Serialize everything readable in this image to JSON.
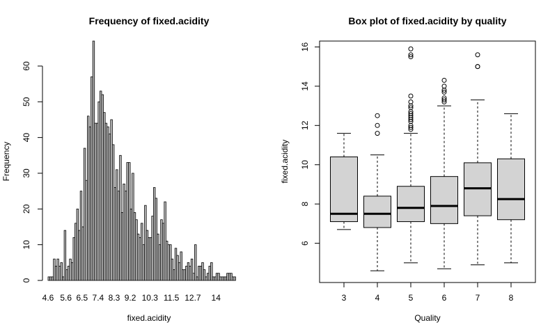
{
  "chart_data": [
    {
      "type": "bar",
      "title": "Frequency of fixed.acidity",
      "xlabel": "fixed.acidity",
      "ylabel": "Frequency",
      "xlim": [
        4.6,
        15.9
      ],
      "ylim": [
        0,
        67
      ],
      "x_tick_labels": [
        "4.6",
        "5.6",
        "6.5",
        "7.4",
        "8.3",
        "9.2",
        "10.3",
        "11.5",
        "12.7",
        "14"
      ],
      "x_tick_values": [
        4.6,
        5.6,
        6.5,
        7.4,
        8.3,
        9.2,
        10.3,
        11.5,
        12.7,
        14.0
      ],
      "y_ticks": [
        0,
        10,
        20,
        30,
        40,
        50,
        60
      ],
      "bin_start": 4.6,
      "bin_width": 0.1,
      "values": [
        1,
        1,
        1,
        6,
        4,
        6,
        4,
        5,
        1,
        14,
        3,
        4,
        6,
        5,
        12,
        16,
        20,
        14,
        25,
        15,
        37,
        28,
        46,
        43,
        57,
        67,
        44,
        44,
        50,
        53,
        52,
        47,
        44,
        43,
        41,
        45,
        38,
        26,
        31,
        25,
        35,
        19,
        27,
        25,
        33,
        33,
        20,
        30,
        19,
        17,
        13,
        12,
        16,
        10,
        21,
        14,
        12,
        12,
        18,
        26,
        23,
        13,
        10,
        17,
        16,
        22,
        11,
        10,
        10,
        6,
        3,
        9,
        7,
        5,
        8,
        3,
        3,
        4,
        5,
        4,
        6,
        2,
        10,
        1,
        4,
        4,
        5,
        3,
        1,
        2,
        4,
        5,
        1,
        1,
        2,
        2,
        1,
        1,
        1,
        1,
        2,
        2,
        2,
        1,
        1
      ]
    },
    {
      "type": "box",
      "title": "Box plot of fixed.acidity by quality",
      "xlabel": "Quality",
      "ylabel": "fixed.acidity",
      "ylim": [
        4.0,
        16.3
      ],
      "y_ticks": [
        6,
        8,
        10,
        12,
        14,
        16
      ],
      "categories": [
        "3",
        "4",
        "5",
        "6",
        "7",
        "8"
      ],
      "boxes": [
        {
          "quality": "3",
          "whisker_low": 6.7,
          "q1": 7.1,
          "median": 7.5,
          "q3": 10.4,
          "whisker_high": 11.6,
          "outliers": []
        },
        {
          "quality": "4",
          "whisker_low": 4.6,
          "q1": 6.8,
          "median": 7.5,
          "q3": 8.4,
          "whisker_high": 10.5,
          "outliers": [
            11.6,
            12.0,
            12.5
          ]
        },
        {
          "quality": "5",
          "whisker_low": 5.0,
          "q1": 7.1,
          "median": 7.8,
          "q3": 8.9,
          "whisker_high": 11.6,
          "outliers": [
            11.8,
            11.9,
            12.0,
            12.2,
            12.3,
            12.4,
            12.5,
            12.6,
            12.7,
            12.9,
            13.0,
            13.2,
            13.5,
            15.5,
            15.6,
            15.9
          ]
        },
        {
          "quality": "6",
          "whisker_low": 4.7,
          "q1": 7.0,
          "median": 7.9,
          "q3": 9.4,
          "whisker_high": 13.0,
          "outliers": [
            13.2,
            13.3,
            13.4,
            13.7,
            13.8,
            14.0,
            14.3
          ]
        },
        {
          "quality": "7",
          "whisker_low": 4.9,
          "q1": 7.4,
          "median": 8.8,
          "q3": 10.1,
          "whisker_high": 13.3,
          "outliers": [
            15.0,
            15.0,
            15.6
          ]
        },
        {
          "quality": "8",
          "whisker_low": 5.0,
          "q1": 7.2,
          "median": 8.25,
          "q3": 10.3,
          "whisker_high": 12.6,
          "outliers": []
        }
      ],
      "colors": {
        "box_fill": "#d3d3d3"
      }
    }
  ]
}
